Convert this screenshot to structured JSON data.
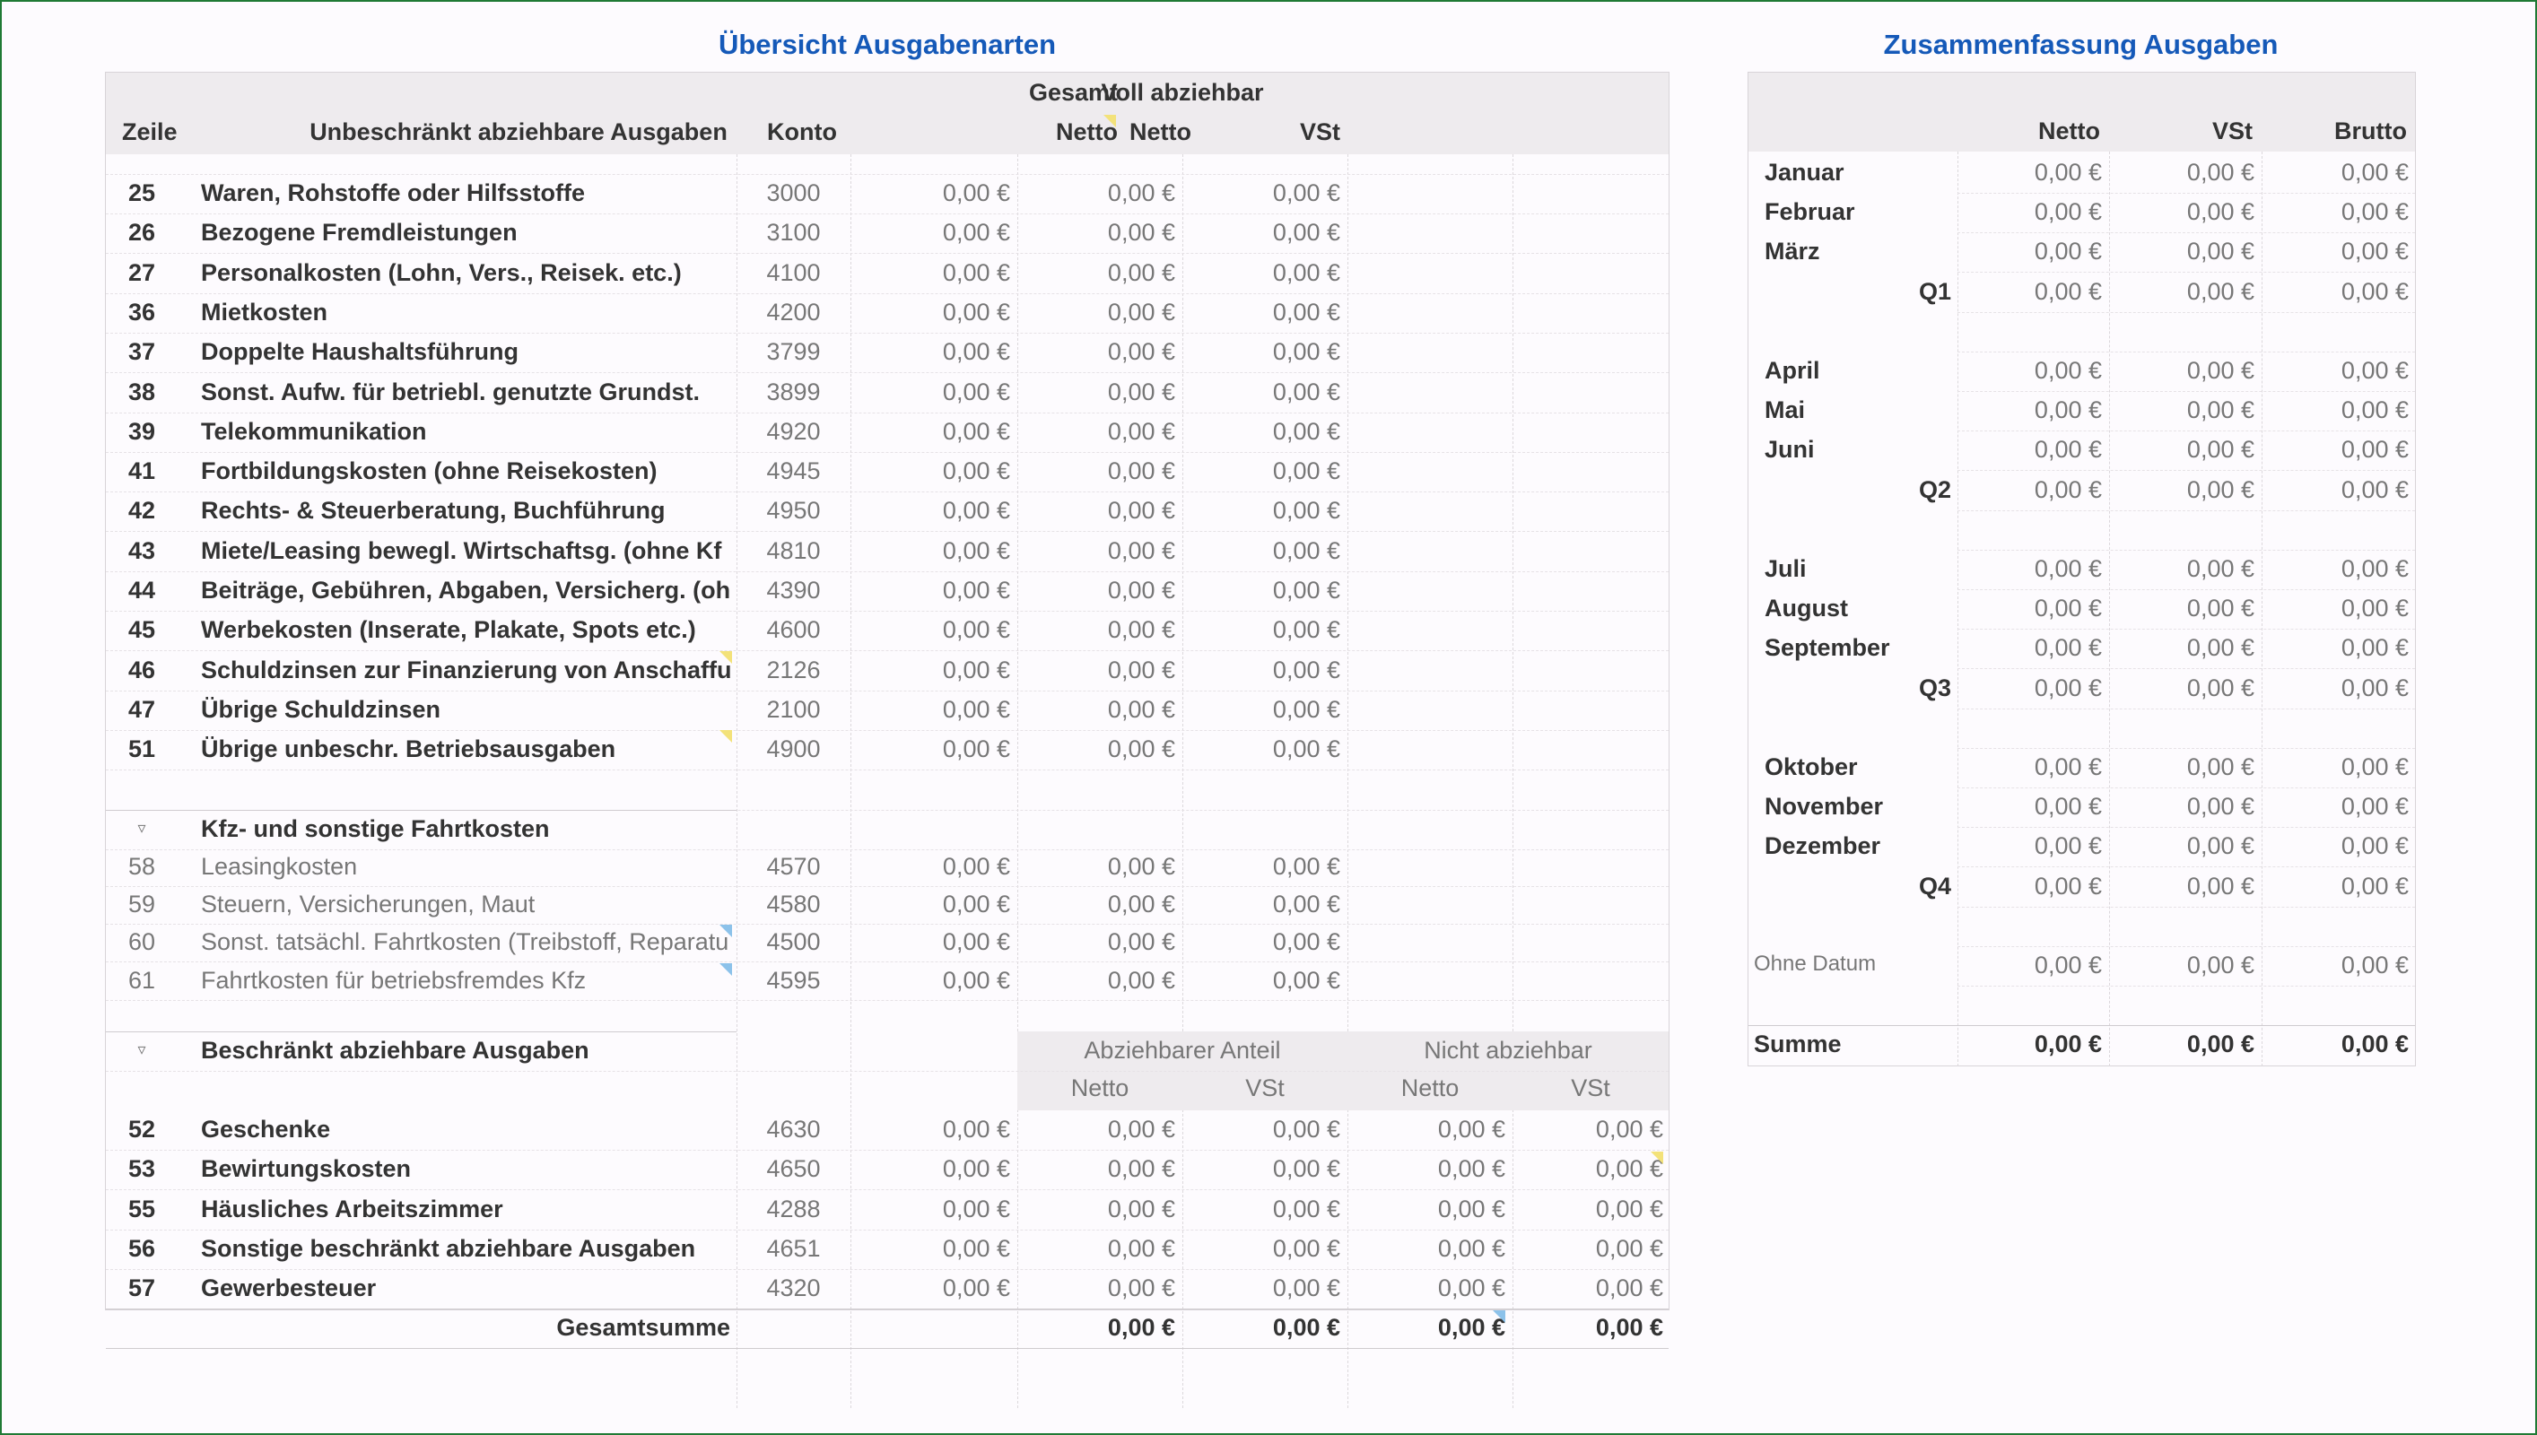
{
  "title_left": "Übersicht Ausgabenarten",
  "title_right": "Zusammenfassung Ausgaben",
  "left_header": {
    "zeile": "Zeile",
    "desc": "Unbeschränkt abziehbare Ausgaben",
    "konto": "Konto",
    "gesamt": "Gesamt",
    "netto1": "Netto",
    "voll": "Voll abziehbar",
    "netto2": "Netto",
    "vst": "VSt"
  },
  "rows_unbeschraenkt": [
    {
      "zeile": "25",
      "desc": "Waren, Rohstoffe oder Hilfsstoffe",
      "konto": "3000",
      "gesamt": "0,00 €",
      "netto": "0,00 €",
      "vst": "0,00 €"
    },
    {
      "zeile": "26",
      "desc": "Bezogene Fremdleistungen",
      "konto": "3100",
      "gesamt": "0,00 €",
      "netto": "0,00 €",
      "vst": "0,00 €"
    },
    {
      "zeile": "27",
      "desc": "Personalkosten (Lohn, Vers., Reisek. etc.)",
      "konto": "4100",
      "gesamt": "0,00 €",
      "netto": "0,00 €",
      "vst": "0,00 €"
    },
    {
      "zeile": "36",
      "desc": "Mietkosten",
      "konto": "4200",
      "gesamt": "0,00 €",
      "netto": "0,00 €",
      "vst": "0,00 €"
    },
    {
      "zeile": "37",
      "desc": "Doppelte Haushaltsführung",
      "konto": "3799",
      "gesamt": "0,00 €",
      "netto": "0,00 €",
      "vst": "0,00 €"
    },
    {
      "zeile": "38",
      "desc": "Sonst. Aufw. für betriebl. genutzte Grundst.",
      "konto": "3899",
      "gesamt": "0,00 €",
      "netto": "0,00 €",
      "vst": "0,00 €"
    },
    {
      "zeile": "39",
      "desc": "Telekommunikation",
      "konto": "4920",
      "gesamt": "0,00 €",
      "netto": "0,00 €",
      "vst": "0,00 €"
    },
    {
      "zeile": "41",
      "desc": "Fortbildungskosten (ohne Reisekosten)",
      "konto": "4945",
      "gesamt": "0,00 €",
      "netto": "0,00 €",
      "vst": "0,00 €"
    },
    {
      "zeile": "42",
      "desc": "Rechts- & Steuerberatung, Buchführung",
      "konto": "4950",
      "gesamt": "0,00 €",
      "netto": "0,00 €",
      "vst": "0,00 €"
    },
    {
      "zeile": "43",
      "desc": "Miete/Leasing bewegl. Wirtschaftsg. (ohne Kf",
      "konto": "4810",
      "gesamt": "0,00 €",
      "netto": "0,00 €",
      "vst": "0,00 €"
    },
    {
      "zeile": "44",
      "desc": "Beiträge, Gebühren, Abgaben, Versicherg. (oh",
      "konto": "4390",
      "gesamt": "0,00 €",
      "netto": "0,00 €",
      "vst": "0,00 €"
    },
    {
      "zeile": "45",
      "desc": "Werbekosten (Inserate, Plakate, Spots etc.)",
      "konto": "4600",
      "gesamt": "0,00 €",
      "netto": "0,00 €",
      "vst": "0,00 €"
    },
    {
      "zeile": "46",
      "desc": "Schuldzinsen zur Finanzierung von Anschaffu",
      "konto": "2126",
      "gesamt": "0,00 €",
      "netto": "0,00 €",
      "vst": "0,00 €"
    },
    {
      "zeile": "47",
      "desc": "Übrige Schuldzinsen",
      "konto": "2100",
      "gesamt": "0,00 €",
      "netto": "0,00 €",
      "vst": "0,00 €"
    },
    {
      "zeile": "51",
      "desc": "Übrige unbeschr. Betriebsausgaben",
      "konto": "4900",
      "gesamt": "0,00 €",
      "netto": "0,00 €",
      "vst": "0,00 €"
    }
  ],
  "kfz_group": {
    "toggle": "▿",
    "label": "Kfz- und sonstige Fahrtkosten",
    "rows": [
      {
        "zeile": "58",
        "desc": "Leasingkosten",
        "konto": "4570",
        "gesamt": "0,00 €",
        "netto": "0,00 €",
        "vst": "0,00 €"
      },
      {
        "zeile": "59",
        "desc": "Steuern, Versicherungen, Maut",
        "konto": "4580",
        "gesamt": "0,00 €",
        "netto": "0,00 €",
        "vst": "0,00 €"
      },
      {
        "zeile": "60",
        "desc": "Sonst. tatsächl. Fahrtkosten (Treibstoff, Reparatu",
        "konto": "4500",
        "gesamt": "0,00 €",
        "netto": "0,00 €",
        "vst": "0,00 €"
      },
      {
        "zeile": "61",
        "desc": "Fahrtkosten für betriebsfremdes Kfz",
        "konto": "4595",
        "gesamt": "0,00 €",
        "netto": "0,00 €",
        "vst": "0,00 €"
      }
    ]
  },
  "beschraenkt_group": {
    "toggle": "▿",
    "label": "Beschränkt abziehbare Ausgaben",
    "abziehbar": "Abziehbarer Anteil",
    "nicht": "Nicht abziehbar",
    "netto_a": "Netto",
    "vst_a": "VSt",
    "netto_n": "Netto",
    "vst_n": "VSt",
    "rows": [
      {
        "zeile": "52",
        "desc": "Geschenke",
        "konto": "4630",
        "gesamt": "0,00 €",
        "netto": "0,00 €",
        "vst": "0,00 €",
        "nnetto": "0,00 €",
        "nvst": "0,00 €"
      },
      {
        "zeile": "53",
        "desc": "Bewirtungskosten",
        "konto": "4650",
        "gesamt": "0,00 €",
        "netto": "0,00 €",
        "vst": "0,00 €",
        "nnetto": "0,00 €",
        "nvst": "0,00 €"
      },
      {
        "zeile": "55",
        "desc": "Häusliches Arbeitszimmer",
        "konto": "4288",
        "gesamt": "0,00 €",
        "netto": "0,00 €",
        "vst": "0,00 €",
        "nnetto": "0,00 €",
        "nvst": "0,00 €"
      },
      {
        "zeile": "56",
        "desc": "Sonstige beschränkt abziehbare Ausgaben",
        "konto": "4651",
        "gesamt": "0,00 €",
        "netto": "0,00 €",
        "vst": "0,00 €",
        "nnetto": "0,00 €",
        "nvst": "0,00 €"
      },
      {
        "zeile": "57",
        "desc": "Gewerbesteuer",
        "konto": "4320",
        "gesamt": "0,00 €",
        "netto": "0,00 €",
        "vst": "0,00 €",
        "nnetto": "0,00 €",
        "nvst": "0,00 €"
      }
    ]
  },
  "gesamtsumme": {
    "label": "Gesamtsumme",
    "netto": "0,00 €",
    "vst": "0,00 €",
    "nnetto": "0,00 €",
    "nvst": "0,00 €"
  },
  "right_header": {
    "netto": "Netto",
    "vst": "VSt",
    "brutto": "Brutto"
  },
  "right_rows": [
    {
      "label": "Januar",
      "q": "",
      "netto": "0,00 €",
      "vst": "0,00 €",
      "brutto": "0,00 €"
    },
    {
      "label": "Februar",
      "q": "",
      "netto": "0,00 €",
      "vst": "0,00 €",
      "brutto": "0,00 €"
    },
    {
      "label": "März",
      "q": "",
      "netto": "0,00 €",
      "vst": "0,00 €",
      "brutto": "0,00 €"
    },
    {
      "label": "",
      "q": "Q1",
      "netto": "0,00 €",
      "vst": "0,00 €",
      "brutto": "0,00 €"
    },
    {
      "label": "",
      "q": "",
      "netto": "",
      "vst": "",
      "brutto": ""
    },
    {
      "label": "April",
      "q": "",
      "netto": "0,00 €",
      "vst": "0,00 €",
      "brutto": "0,00 €"
    },
    {
      "label": "Mai",
      "q": "",
      "netto": "0,00 €",
      "vst": "0,00 €",
      "brutto": "0,00 €"
    },
    {
      "label": "Juni",
      "q": "",
      "netto": "0,00 €",
      "vst": "0,00 €",
      "brutto": "0,00 €"
    },
    {
      "label": "",
      "q": "Q2",
      "netto": "0,00 €",
      "vst": "0,00 €",
      "brutto": "0,00 €"
    },
    {
      "label": "",
      "q": "",
      "netto": "",
      "vst": "",
      "brutto": ""
    },
    {
      "label": "Juli",
      "q": "",
      "netto": "0,00 €",
      "vst": "0,00 €",
      "brutto": "0,00 €"
    },
    {
      "label": "August",
      "q": "",
      "netto": "0,00 €",
      "vst": "0,00 €",
      "brutto": "0,00 €"
    },
    {
      "label": "September",
      "q": "",
      "netto": "0,00 €",
      "vst": "0,00 €",
      "brutto": "0,00 €"
    },
    {
      "label": "",
      "q": "Q3",
      "netto": "0,00 €",
      "vst": "0,00 €",
      "brutto": "0,00 €"
    },
    {
      "label": "",
      "q": "",
      "netto": "",
      "vst": "",
      "brutto": ""
    },
    {
      "label": "Oktober",
      "q": "",
      "netto": "0,00 €",
      "vst": "0,00 €",
      "brutto": "0,00 €"
    },
    {
      "label": "November",
      "q": "",
      "netto": "0,00 €",
      "vst": "0,00 €",
      "brutto": "0,00 €"
    },
    {
      "label": "Dezember",
      "q": "",
      "netto": "0,00 €",
      "vst": "0,00 €",
      "brutto": "0,00 €"
    },
    {
      "label": "",
      "q": "Q4",
      "netto": "0,00 €",
      "vst": "0,00 €",
      "brutto": "0,00 €"
    },
    {
      "label": "",
      "q": "",
      "netto": "",
      "vst": "",
      "brutto": ""
    },
    {
      "label": "Ohne Datum",
      "q": "",
      "netto": "0,00 €",
      "vst": "0,00 €",
      "brutto": "0,00 €"
    },
    {
      "label": "",
      "q": "",
      "netto": "",
      "vst": "",
      "brutto": ""
    }
  ],
  "right_sum": {
    "label": "Summe",
    "netto": "0,00 €",
    "vst": "0,00 €",
    "brutto": "0,00 €"
  }
}
